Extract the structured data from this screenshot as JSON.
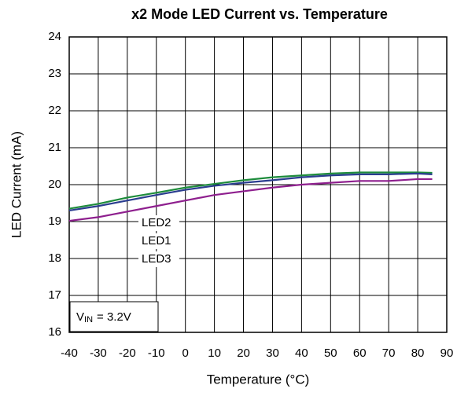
{
  "chart_data": {
    "type": "line",
    "title": "x2 Mode LED Current  vs. Temperature",
    "xlabel": "Temperature (°C)",
    "ylabel": "LED Current (mA)",
    "x": [
      -40,
      -30,
      -20,
      -10,
      0,
      10,
      20,
      30,
      40,
      50,
      60,
      70,
      80,
      85
    ],
    "series": [
      {
        "name": "LED2",
        "color": "#1e8c3c",
        "values": [
          19.35,
          19.48,
          19.65,
          19.78,
          19.92,
          20.02,
          20.12,
          20.2,
          20.25,
          20.3,
          20.33,
          20.33,
          20.33,
          20.32
        ]
      },
      {
        "name": "LED1",
        "color": "#2a3d8f",
        "values": [
          19.3,
          19.42,
          19.57,
          19.72,
          19.86,
          19.97,
          20.05,
          20.12,
          20.2,
          20.25,
          20.28,
          20.28,
          20.3,
          20.28
        ]
      },
      {
        "name": "LED3",
        "color": "#8e1f8e",
        "values": [
          19.02,
          19.12,
          19.27,
          19.42,
          19.57,
          19.72,
          19.82,
          19.92,
          20.0,
          20.05,
          20.1,
          20.1,
          20.15,
          20.15
        ]
      }
    ],
    "xlim": [
      -40,
      90
    ],
    "xticks": [
      -40,
      -30,
      -20,
      -10,
      0,
      10,
      20,
      30,
      40,
      50,
      60,
      70,
      80,
      90
    ],
    "ylim": [
      16,
      24
    ],
    "yticks": [
      16,
      17,
      18,
      19,
      20,
      21,
      22,
      23,
      24
    ],
    "grid": true,
    "annotation": {
      "main": "V",
      "sub": "IN",
      "rest": "= 3.2V"
    }
  }
}
